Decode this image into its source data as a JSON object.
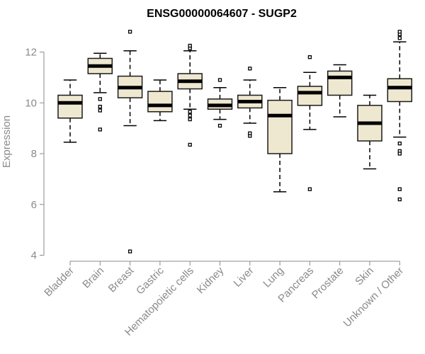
{
  "chart_data": {
    "type": "boxplot",
    "title": "ENSG00000064607 - SUGP2",
    "xlabel": "",
    "ylabel": "Expression",
    "ylim": [
      4,
      13
    ],
    "yticks": [
      4,
      6,
      8,
      10,
      12
    ],
    "colors": {
      "box_fill": "#efe8d0",
      "text": "#8a8a8a"
    },
    "categories": [
      "Bladder",
      "Brain",
      "Breast",
      "Gastric",
      "Hematopoietic cells",
      "Kidney",
      "Liver",
      "Lung",
      "Pancreas",
      "Prostate",
      "Skin",
      "Unknown / Other"
    ],
    "boxes": [
      {
        "min": 8.45,
        "q1": 9.4,
        "median": 10.0,
        "q3": 10.3,
        "max": 10.9,
        "outliers": []
      },
      {
        "min": 10.4,
        "q1": 11.15,
        "median": 11.45,
        "q3": 11.75,
        "max": 11.95,
        "outliers": [
          8.95,
          9.7,
          9.85,
          10.15
        ]
      },
      {
        "min": 9.1,
        "q1": 10.2,
        "median": 10.6,
        "q3": 11.05,
        "max": 12.05,
        "outliers": [
          12.8,
          4.15
        ]
      },
      {
        "min": 9.3,
        "q1": 9.65,
        "median": 9.9,
        "q3": 10.45,
        "max": 10.9,
        "outliers": []
      },
      {
        "min": 9.75,
        "q1": 10.55,
        "median": 10.85,
        "q3": 11.15,
        "max": 12.05,
        "outliers": [
          12.15,
          12.25,
          9.35,
          9.5,
          9.65,
          8.35
        ]
      },
      {
        "min": 9.35,
        "q1": 9.75,
        "median": 9.9,
        "q3": 10.15,
        "max": 10.6,
        "outliers": [
          10.9,
          9.1
        ]
      },
      {
        "min": 9.2,
        "q1": 9.8,
        "median": 10.05,
        "q3": 10.3,
        "max": 10.9,
        "outliers": [
          11.35,
          8.7,
          8.8
        ]
      },
      {
        "min": 6.5,
        "q1": 8.0,
        "median": 9.5,
        "q3": 10.1,
        "max": 10.6,
        "outliers": []
      },
      {
        "min": 8.95,
        "q1": 9.9,
        "median": 10.4,
        "q3": 10.65,
        "max": 11.2,
        "outliers": [
          11.8,
          6.6
        ]
      },
      {
        "min": 9.45,
        "q1": 10.3,
        "median": 11.0,
        "q3": 11.25,
        "max": 11.5,
        "outliers": []
      },
      {
        "min": 7.4,
        "q1": 8.5,
        "median": 9.2,
        "q3": 9.9,
        "max": 10.3,
        "outliers": []
      },
      {
        "min": 8.65,
        "q1": 10.05,
        "median": 10.6,
        "q3": 10.95,
        "max": 12.4,
        "outliers": [
          12.55,
          12.7,
          12.8,
          8.4,
          8.1,
          8.0,
          6.6,
          6.2
        ]
      }
    ]
  }
}
